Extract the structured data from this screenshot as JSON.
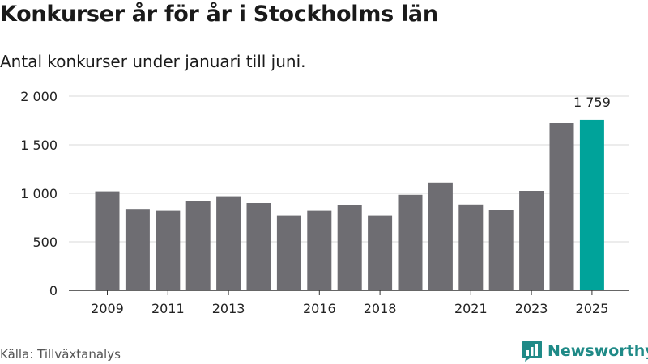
{
  "title": "Konkurser år för år i Stockholms län",
  "subtitle": "Antal konkurser under januari till juni.",
  "source": "Källa: Tillväxtanalys",
  "brand": {
    "name": "Newsworthy"
  },
  "colors": {
    "bar": "#6e6d72",
    "highlight": "#00a39a",
    "grid": "#d9d9d9",
    "axis": "#333333",
    "brand": "#1f8a87"
  },
  "chart_data": {
    "type": "bar",
    "categories": [
      "2009",
      "2010",
      "2011",
      "2012",
      "2013",
      "2014",
      "2015",
      "2016",
      "2017",
      "2018",
      "2019",
      "2020",
      "2021",
      "2022",
      "2023",
      "2024",
      "2025"
    ],
    "tick_labels": [
      "2009",
      "",
      "2011",
      "",
      "2013",
      "",
      "",
      "2016",
      "",
      "2018",
      "",
      "",
      "2021",
      "",
      "2023",
      "",
      "2025"
    ],
    "values": [
      1020,
      840,
      820,
      920,
      970,
      900,
      770,
      820,
      880,
      770,
      985,
      1110,
      885,
      830,
      1025,
      1725,
      1759
    ],
    "highlight_index": 16,
    "highlight_label": "1 759",
    "y_ticks": [
      0,
      500,
      1000,
      1500,
      2000
    ],
    "y_tick_labels": [
      "0",
      "500",
      "1 000",
      "1 500",
      "2 000"
    ],
    "ylim": [
      0,
      2000
    ],
    "grid": true
  }
}
